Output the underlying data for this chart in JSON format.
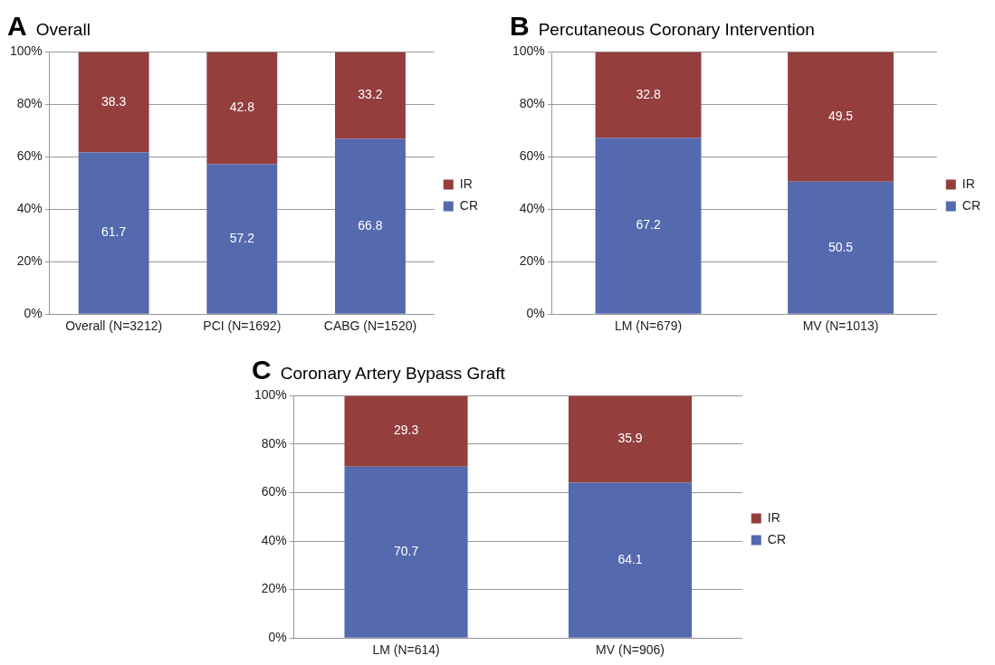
{
  "chart_data": [
    {
      "type": "bar",
      "title": "Overall",
      "annotations": [
        "A"
      ],
      "categories": [
        "Overall (N=3212)",
        "PCI (N=1692)",
        "CABG (N=1520)"
      ],
      "stacked": true,
      "data_labels": true,
      "legend": "right",
      "grid": "y",
      "ylim": [
        0,
        100
      ],
      "yticks": [
        {
          "value": 0,
          "label": "0%"
        },
        {
          "value": 20,
          "label": "20%"
        },
        {
          "value": 40,
          "label": "40%"
        },
        {
          "value": 60,
          "label": "60%"
        },
        {
          "value": 80,
          "label": "80%"
        },
        {
          "value": 100,
          "label": "100%"
        }
      ],
      "series": [
        {
          "name": "CR",
          "color": "#5469ae",
          "values": [
            61.7,
            57.2,
            66.8
          ]
        },
        {
          "name": "IR",
          "color": "#943e3d",
          "values": [
            38.3,
            42.8,
            33.2
          ]
        }
      ]
    },
    {
      "type": "bar",
      "title": "Percutaneous Coronary Intervention",
      "annotations": [
        "B"
      ],
      "categories": [
        "LM (N=679)",
        "MV (N=1013)"
      ],
      "stacked": true,
      "data_labels": true,
      "legend": "right",
      "grid": "y",
      "ylim": [
        0,
        100
      ],
      "yticks": [
        {
          "value": 0,
          "label": "0%"
        },
        {
          "value": 20,
          "label": "20%"
        },
        {
          "value": 40,
          "label": "40%"
        },
        {
          "value": 60,
          "label": "60%"
        },
        {
          "value": 80,
          "label": "80%"
        },
        {
          "value": 100,
          "label": "100%"
        }
      ],
      "series": [
        {
          "name": "CR",
          "color": "#5469ae",
          "values": [
            67.2,
            50.5
          ]
        },
        {
          "name": "IR",
          "color": "#943e3d",
          "values": [
            32.8,
            49.5
          ]
        }
      ]
    },
    {
      "type": "bar",
      "title": "Coronary Artery Bypass Graft",
      "annotations": [
        "C"
      ],
      "categories": [
        "LM (N=614)",
        "MV (N=906)"
      ],
      "stacked": true,
      "data_labels": true,
      "legend": "right",
      "grid": "y",
      "ylim": [
        0,
        100
      ],
      "yticks": [
        {
          "value": 0,
          "label": "0%"
        },
        {
          "value": 20,
          "label": "20%"
        },
        {
          "value": 40,
          "label": "40%"
        },
        {
          "value": 60,
          "label": "60%"
        },
        {
          "value": 80,
          "label": "80%"
        },
        {
          "value": 100,
          "label": "100%"
        }
      ],
      "series": [
        {
          "name": "CR",
          "color": "#5469ae",
          "values": [
            70.7,
            64.1
          ]
        },
        {
          "name": "IR",
          "color": "#943e3d",
          "values": [
            29.3,
            35.9
          ]
        }
      ]
    }
  ]
}
